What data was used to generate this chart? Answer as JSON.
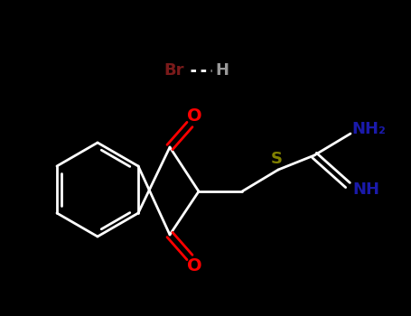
{
  "background_color": "#000000",
  "bond_color": "#ffffff",
  "O_color": "#ff0000",
  "N_color": "#1a1aaa",
  "S_color": "#808000",
  "Br_color": "#7a1a1a",
  "H_color": "#999999",
  "bond_lw": 2.0,
  "figsize": [
    4.55,
    3.5
  ],
  "dpi": 100,
  "xlim": [
    0,
    455
  ],
  "ylim": [
    0,
    350
  ]
}
